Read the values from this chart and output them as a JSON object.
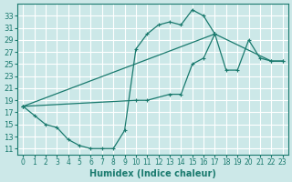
{
  "xlabel": "Humidex (Indice chaleur)",
  "bg_color": "#cce8e8",
  "grid_color": "#ffffff",
  "line_color": "#1a7a6e",
  "xlim": [
    -0.5,
    23.5
  ],
  "ylim": [
    10,
    35
  ],
  "xticks": [
    0,
    1,
    2,
    3,
    4,
    5,
    6,
    7,
    8,
    9,
    10,
    11,
    12,
    13,
    14,
    15,
    16,
    17,
    18,
    19,
    20,
    21,
    22,
    23
  ],
  "yticks": [
    11,
    13,
    15,
    17,
    19,
    21,
    23,
    25,
    27,
    29,
    31,
    33
  ],
  "curve1_x": [
    0,
    1,
    2,
    3,
    4,
    5,
    6,
    7,
    8,
    9,
    10,
    11,
    12,
    13,
    14,
    15,
    16,
    17
  ],
  "curve1_y": [
    18,
    16.5,
    15,
    14.5,
    12.5,
    11.5,
    11,
    11,
    11,
    14,
    27.5,
    30,
    31.5,
    32,
    31.5,
    34,
    33,
    30
  ],
  "curve2_x": [
    0,
    17,
    18,
    19,
    20,
    21,
    22,
    23
  ],
  "curve2_y": [
    18,
    30,
    24,
    24,
    29,
    26,
    25.5,
    25.5
  ],
  "curve3_x": [
    0,
    10,
    11,
    13,
    14,
    15,
    16,
    17,
    22,
    23
  ],
  "curve3_y": [
    18,
    19,
    19,
    20,
    20,
    25,
    26,
    30,
    25.5,
    25.5
  ]
}
